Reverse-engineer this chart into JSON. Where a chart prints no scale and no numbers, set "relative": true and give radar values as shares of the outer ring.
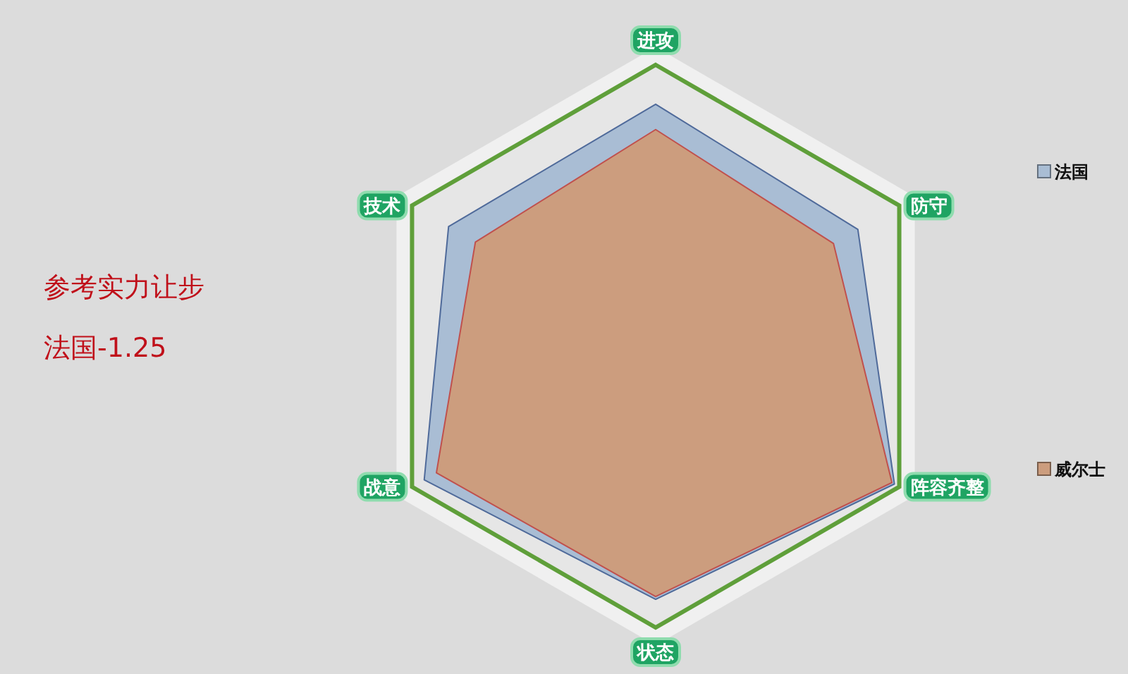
{
  "chart_data": {
    "type": "radar",
    "relative": true,
    "legend": "right",
    "categories": [
      "进攻",
      "防守",
      "阵容齐整",
      "状态",
      "战意",
      "技术"
    ],
    "series": [
      {
        "name": "法国",
        "color": "#a9bdd4",
        "values": [
          0.86,
          0.83,
          0.98,
          0.9,
          0.95,
          0.85
        ]
      },
      {
        "name": "威尔士",
        "color": "#cc9d7e",
        "values": [
          0.77,
          0.73,
          0.97,
          0.89,
          0.9,
          0.74
        ]
      }
    ],
    "annotations": [
      "参考实力让步",
      "法国-1.25"
    ]
  }
}
